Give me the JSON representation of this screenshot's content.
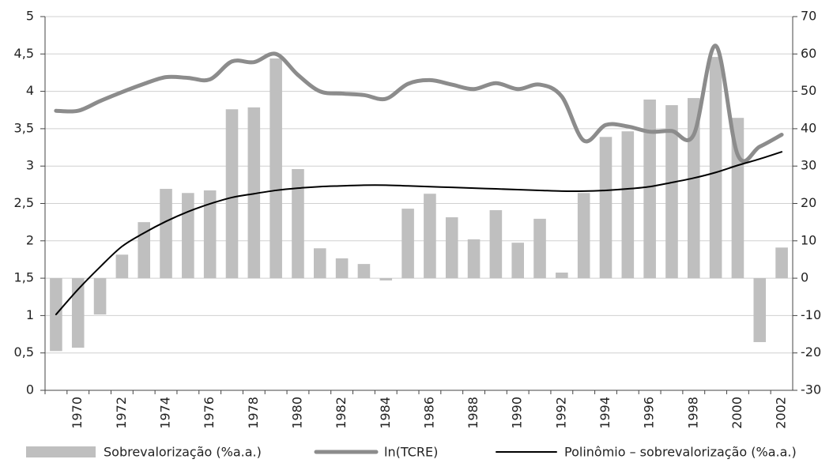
{
  "chart_data": {
    "type": "bar",
    "categories": [
      null,
      "1970",
      null,
      "1972",
      null,
      "1974",
      null,
      "1976",
      null,
      "1978",
      null,
      "1980",
      null,
      "1982",
      null,
      "1984",
      null,
      "1986",
      null,
      "1988",
      null,
      "1990",
      null,
      "1992",
      null,
      "1994",
      null,
      "1996",
      null,
      "1998",
      null,
      "2000",
      null,
      "2002"
    ],
    "series": [
      {
        "name": "Sobrevalorização (%a.a.)",
        "type": "bar",
        "axis": "y2",
        "color": "#bfbfbf",
        "values": [
          -19.5,
          -18.6,
          -9.7,
          6.3,
          15.0,
          23.9,
          22.8,
          23.5,
          45.2,
          45.7,
          58.8,
          29.2,
          8.0,
          5.3,
          3.8,
          -0.6,
          18.6,
          22.6,
          16.3,
          10.4,
          18.2,
          9.5,
          15.9,
          1.5,
          22.8,
          37.8,
          39.3,
          47.8,
          46.3,
          48.2,
          59.2,
          42.9,
          -17.1,
          8.2
        ]
      },
      {
        "name": "ln(TCRE)",
        "type": "line",
        "color": "#8c8c8c",
        "width": 5,
        "values": [
          3.74,
          3.74,
          3.87,
          3.99,
          4.1,
          4.19,
          4.18,
          4.16,
          4.4,
          4.39,
          4.5,
          4.22,
          4.0,
          3.97,
          3.95,
          3.9,
          4.1,
          4.15,
          4.09,
          4.03,
          4.11,
          4.03,
          4.09,
          3.93,
          3.34,
          3.55,
          3.53,
          3.46,
          3.47,
          3.42,
          4.61,
          3.15,
          3.26,
          3.42
        ]
      },
      {
        "name": "Polinômio – sobrevalorização (%a.a.)",
        "type": "line",
        "axis": "y2",
        "color": "#000000",
        "width": 2,
        "values": [
          -9.7,
          -3.0,
          3.0,
          8.5,
          12.1,
          15.2,
          17.8,
          19.9,
          21.6,
          22.6,
          23.5,
          24.1,
          24.5,
          24.7,
          24.9,
          24.9,
          24.7,
          24.5,
          24.3,
          24.1,
          23.9,
          23.7,
          23.5,
          23.3,
          23.3,
          23.5,
          23.9,
          24.5,
          25.6,
          26.8,
          28.3,
          30.2,
          31.9,
          33.8
        ]
      }
    ],
    "ylim": [
      0,
      5
    ],
    "yticks": [
      0,
      {
        "value": 0.5,
        "label": "0,5"
      },
      1,
      {
        "value": 1.5,
        "label": "1,5"
      },
      2,
      {
        "value": 2.5,
        "label": "2,5"
      },
      3,
      {
        "value": 3.5,
        "label": "3,5"
      },
      4,
      {
        "value": 4.5,
        "label": "4,5"
      },
      5
    ],
    "y2lim": [
      -30,
      70
    ],
    "y2ticks": [
      -30,
      -20,
      -10,
      0,
      10,
      20,
      30,
      40,
      50,
      60,
      70
    ],
    "grid": true,
    "legend": "bottom"
  }
}
